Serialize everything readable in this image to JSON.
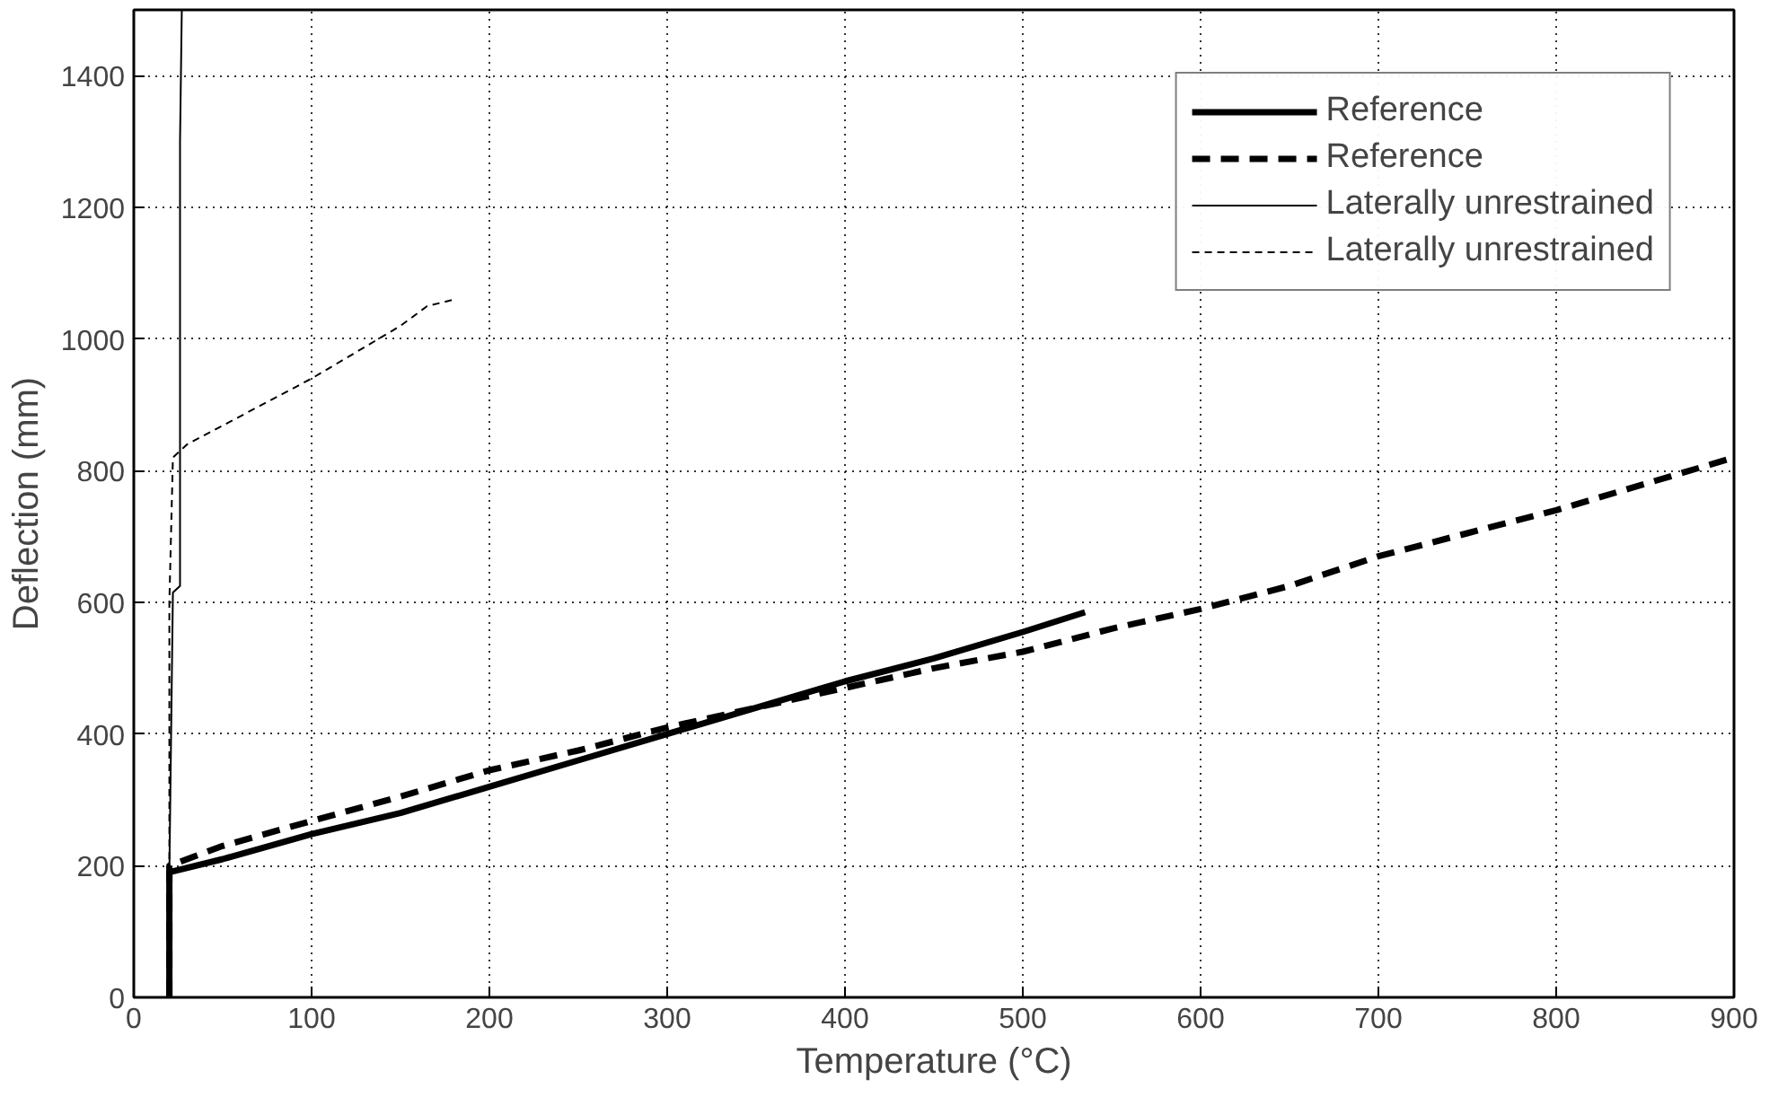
{
  "chart_data": {
    "type": "line",
    "xlabel": "Temperature (°C)",
    "ylabel": "Deflection (mm)",
    "xlim": [
      0,
      900
    ],
    "ylim": [
      0,
      1500
    ],
    "xticks": [
      0,
      100,
      200,
      300,
      400,
      500,
      600,
      700,
      800,
      900
    ],
    "yticks": [
      0,
      200,
      400,
      600,
      800,
      1000,
      1200,
      1400
    ],
    "grid": true,
    "legend": "top right",
    "series": [
      {
        "name": "Reference",
        "color": "#000000",
        "line_style": "solid",
        "x": [
          20,
          20,
          50,
          100,
          150,
          200,
          250,
          300,
          350,
          400,
          450,
          500,
          535
        ],
        "values": [
          0,
          190,
          210,
          248,
          280,
          320,
          360,
          400,
          440,
          480,
          515,
          555,
          585
        ]
      },
      {
        "name": "Reference",
        "color": "#000000",
        "line_style": "dashed",
        "x": [
          20,
          20,
          50,
          100,
          150,
          200,
          250,
          300,
          350,
          400,
          450,
          500,
          550,
          600,
          650,
          700,
          750,
          800,
          850,
          900
        ],
        "values": [
          0,
          200,
          230,
          268,
          305,
          345,
          375,
          410,
          440,
          470,
          500,
          525,
          560,
          590,
          625,
          670,
          705,
          740,
          780,
          820
        ]
      },
      {
        "name": "Laterally unrestrained",
        "color": "#000000",
        "line_style": "solid",
        "x": [
          20,
          20,
          22,
          26,
          26,
          27
        ],
        "values": [
          0,
          190,
          615,
          625,
          1300,
          1500
        ]
      },
      {
        "name": "Laterally unrestrained",
        "color": "#000000",
        "line_style": "dashed",
        "x": [
          20,
          20,
          22,
          30,
          100,
          150,
          165,
          180
        ],
        "values": [
          0,
          600,
          820,
          840,
          940,
          1020,
          1050,
          1060
        ]
      }
    ]
  }
}
